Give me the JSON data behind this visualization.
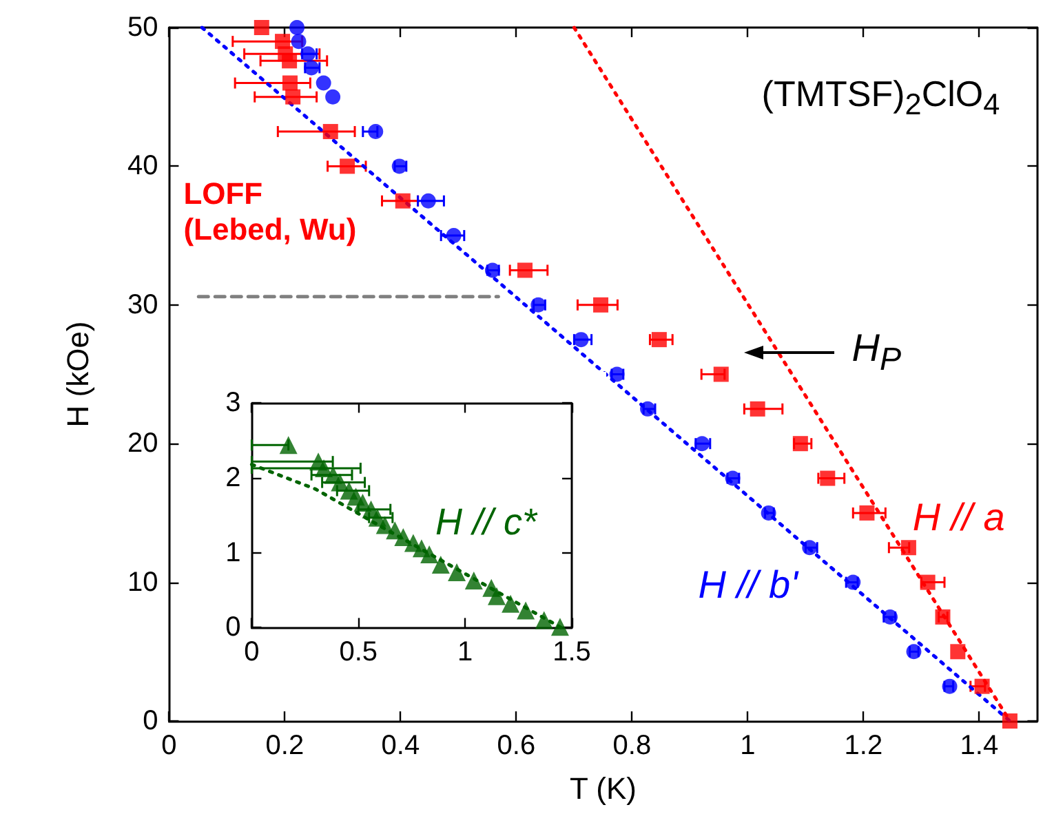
{
  "chart_data": [
    {
      "type": "scatter",
      "xlabel": "T (K)",
      "ylabel": "H (kOe)",
      "xlim": [
        0,
        1.5
      ],
      "xticks": [
        0,
        0.2,
        0.4,
        0.6,
        0.8,
        1,
        1.2,
        1.4
      ],
      "ylim": [
        0,
        50
      ],
      "yticks": [
        0,
        10,
        20,
        30,
        40,
        50
      ],
      "annotations": [
        "(TMTSF)$_{2}$ClO$_{4}$",
        "LOFF\n(Lebed, Wu)",
        "H$_{P}$"
      ],
      "series": [
        {
          "name": "H // a",
          "color": "#ff0000",
          "marker": "square",
          "x": [
            0.16,
            0.196,
            0.201,
            0.208,
            0.209,
            0.214,
            0.279,
            0.308,
            0.404,
            0.494,
            0.615,
            0.746,
            0.847,
            0.954,
            1.017,
            1.091,
            1.138,
            1.206,
            1.278,
            1.311,
            1.337,
            1.363,
            1.405,
            1.453
          ],
          "values": [
            50,
            49,
            48.1,
            47.6,
            46,
            45,
            42.5,
            40,
            37.5,
            null,
            32.5,
            30,
            27.5,
            25,
            22.5,
            20,
            17.5,
            15,
            12.5,
            10,
            7.5,
            5,
            2.5,
            0
          ],
          "xerrors": [
            null,
            [
              0.11,
              0.23
            ],
            [
              0.13,
              0.26
            ],
            [
              0.158,
              0.273
            ],
            [
              0.114,
              0.244
            ],
            [
              0.148,
              0.255
            ],
            [
              0.188,
              0.321
            ],
            [
              0.274,
              0.34
            ],
            [
              0.368,
              0.43
            ],
            null,
            [
              0.589,
              0.654
            ],
            [
              0.706,
              0.775
            ],
            [
              0.831,
              0.87
            ],
            [
              0.92,
              0.96
            ],
            [
              0.994,
              1.06
            ],
            [
              1.08,
              1.11
            ],
            [
              1.122,
              1.167
            ],
            [
              1.182,
              1.238
            ],
            [
              1.244,
              1.279
            ],
            [
              1.3,
              1.34
            ],
            [
              1.33,
              1.345
            ],
            null,
            [
              1.385,
              1.41
            ],
            null
          ]
        },
        {
          "name": "H // b'",
          "color": "#0000ff",
          "marker": "circle",
          "x": [
            0.221,
            0.224,
            0.24,
            0.246,
            0.267,
            0.283,
            0.357,
            0.398,
            0.448,
            0.492,
            0.559,
            0.638,
            0.712,
            0.774,
            0.827,
            0.921,
            0.974,
            1.036,
            1.107,
            1.182,
            1.246,
            1.287,
            1.349
          ],
          "values": [
            50,
            49,
            48.1,
            47.1,
            46,
            45,
            42.5,
            40,
            37.5,
            35,
            32.5,
            30,
            27.5,
            25,
            22.5,
            20,
            17.5,
            15,
            12.5,
            10,
            7.5,
            5,
            2.5
          ],
          "xerrors": [
            null,
            null,
            [
              0.23,
              0.255
            ],
            [
              0.235,
              0.26
            ],
            null,
            null,
            [
              0.335,
              0.36
            ],
            [
              0.39,
              0.41
            ],
            [
              0.43,
              0.475
            ],
            [
              0.47,
              0.51
            ],
            [
              0.55,
              0.57
            ],
            [
              0.63,
              0.65
            ],
            [
              0.7,
              0.73
            ],
            [
              0.765,
              0.785
            ],
            [
              0.82,
              0.84
            ],
            [
              0.91,
              0.935
            ],
            [
              0.965,
              0.985
            ],
            [
              1.03,
              1.045
            ],
            [
              1.1,
              1.12
            ],
            [
              1.17,
              1.19
            ],
            [
              1.235,
              1.255
            ],
            [
              1.28,
              1.295
            ],
            [
              1.34,
              1.355
            ]
          ]
        },
        {
          "type": "line",
          "color": "#ff0000",
          "marker": "none",
          "line_style": "dotted",
          "x": [
            0.7,
            1.453
          ],
          "values": [
            50,
            0
          ]
        },
        {
          "type": "line",
          "color": "#0000ff",
          "marker": "none",
          "line_style": "dotted",
          "x": [
            0.057,
            1.453
          ],
          "values": [
            50,
            0
          ]
        },
        {
          "type": "line",
          "color": "#808080",
          "marker": "none",
          "line_style": "dashed",
          "x": [
            0.051,
            0.569
          ],
          "values": [
            30.6,
            30.6
          ]
        }
      ]
    },
    {
      "type": "scatter",
      "xlim": [
        0,
        1.5
      ],
      "xticks": [
        0,
        0.5,
        1,
        1.5
      ],
      "ylim": [
        0,
        3
      ],
      "yticks": [
        0,
        1,
        2,
        3
      ],
      "series": [
        {
          "name": "H // c*",
          "color": "#006400",
          "marker": "triangle",
          "x": [
            0.172,
            0.312,
            0.338,
            0.381,
            0.413,
            0.456,
            0.488,
            0.52,
            0.559,
            0.589,
            0.624,
            0.671,
            0.71,
            0.757,
            0.796,
            0.832,
            0.886,
            0.961,
            1.041,
            1.123,
            1.148,
            1.213,
            1.284,
            1.37,
            1.445
          ],
          "values": [
            2.44,
            2.22,
            2.13,
            2.04,
            1.94,
            1.83,
            1.75,
            1.67,
            1.58,
            1.47,
            1.37,
            1.3,
            1.21,
            1.13,
            1.06,
            0.98,
            0.84,
            0.74,
            0.63,
            0.53,
            0.42,
            0.32,
            0.23,
            0.1,
            0.01
          ],
          "xerrors": [
            [
              0,
              0.172
            ],
            [
              0,
              0.38
            ],
            [
              0,
              0.51
            ],
            [
              0.28,
              0.47
            ],
            [
              0.33,
              0.53
            ],
            [
              0.4,
              0.55
            ],
            null,
            null,
            [
              0.5,
              0.65
            ],
            [
              0.55,
              0.66
            ],
            null,
            null,
            null,
            null,
            null,
            null,
            null,
            null,
            null,
            null,
            null,
            null,
            null,
            null,
            null
          ]
        },
        {
          "type": "line",
          "color": "#006400",
          "marker": "none",
          "line_style": "dotted",
          "x": [
            0,
            0.3,
            0.6,
            1,
            1.45
          ],
          "values": [
            2.18,
            1.85,
            1.36,
            0.72,
            0
          ]
        }
      ]
    }
  ]
}
